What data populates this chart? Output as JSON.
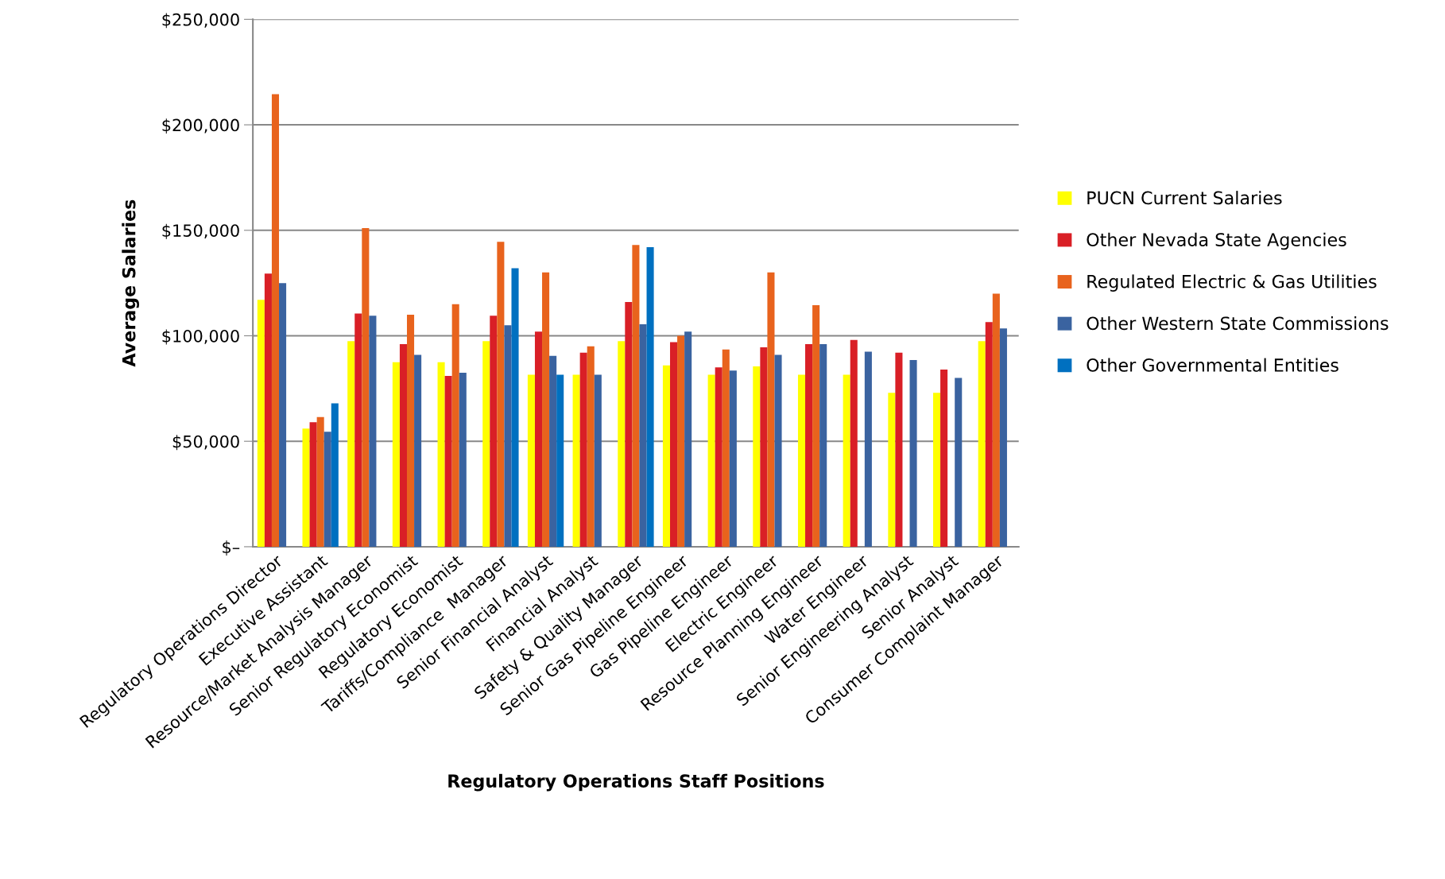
{
  "chart_data": {
    "type": "bar",
    "xlabel": "Regulatory Operations Staff Positions",
    "ylabel": "Average Salaries",
    "categories": [
      "Regulatory Operations Director",
      "Executive Assistant",
      "Resource/Market Analysis Manager",
      "Senior Regulatory Economist",
      "Regulatory Economist",
      "Tariffs/Compliance  Manager",
      "Senior Financial Analyst",
      "Financial Analyst",
      "Safety & Quality Manager",
      "Senior Gas Pipeline Engineer",
      "Gas Pipeline Engineer",
      "Electric Engineer",
      "Resource Planning Engineer",
      "Water Engineer",
      "Senior Engineering Analyst",
      "Senior Analyst",
      "Consumer Complaint Manager"
    ],
    "series": [
      {
        "name": "PUCN Current Salaries",
        "color": "#ffff00",
        "values": [
          117000,
          56000,
          97500,
          87500,
          87500,
          97500,
          81500,
          81500,
          97500,
          86000,
          81500,
          85500,
          81500,
          81500,
          73000,
          73000,
          97500
        ]
      },
      {
        "name": "Other Nevada State Agencies",
        "color": "#d91f26",
        "values": [
          129500,
          59000,
          110500,
          96000,
          81000,
          109500,
          102000,
          92000,
          116000,
          97000,
          85000,
          94500,
          96000,
          98000,
          92000,
          84000,
          106500
        ]
      },
      {
        "name": "Regulated Electric & Gas Utilities",
        "color": "#e8631d",
        "values": [
          214500,
          61500,
          151000,
          110000,
          115000,
          144500,
          130000,
          95000,
          143000,
          100000,
          93500,
          130000,
          114500,
          null,
          null,
          null,
          120000
        ]
      },
      {
        "name": "Other Western State Commissions",
        "color": "#3a63a0",
        "values": [
          125000,
          54500,
          109500,
          91000,
          82500,
          105000,
          90500,
          81500,
          105500,
          102000,
          83500,
          91000,
          96000,
          92500,
          88500,
          80000,
          103500
        ]
      },
      {
        "name": "Other Governmental Entities",
        "color": "#0070c0",
        "values": [
          null,
          68000,
          null,
          null,
          null,
          132000,
          81500,
          null,
          142000,
          null,
          null,
          null,
          null,
          null,
          null,
          null,
          null
        ]
      }
    ],
    "ylim": [
      0,
      250000
    ],
    "yticks": [
      {
        "value": 0,
        "label": "$–"
      },
      {
        "value": 50000,
        "label": "$50,000"
      },
      {
        "value": 100000,
        "label": "$100,000"
      },
      {
        "value": 150000,
        "label": "$150,000"
      },
      {
        "value": 200000,
        "label": "$200,000"
      },
      {
        "value": 250000,
        "label": "$250,000"
      }
    ],
    "grid": "y",
    "legend": "right"
  }
}
